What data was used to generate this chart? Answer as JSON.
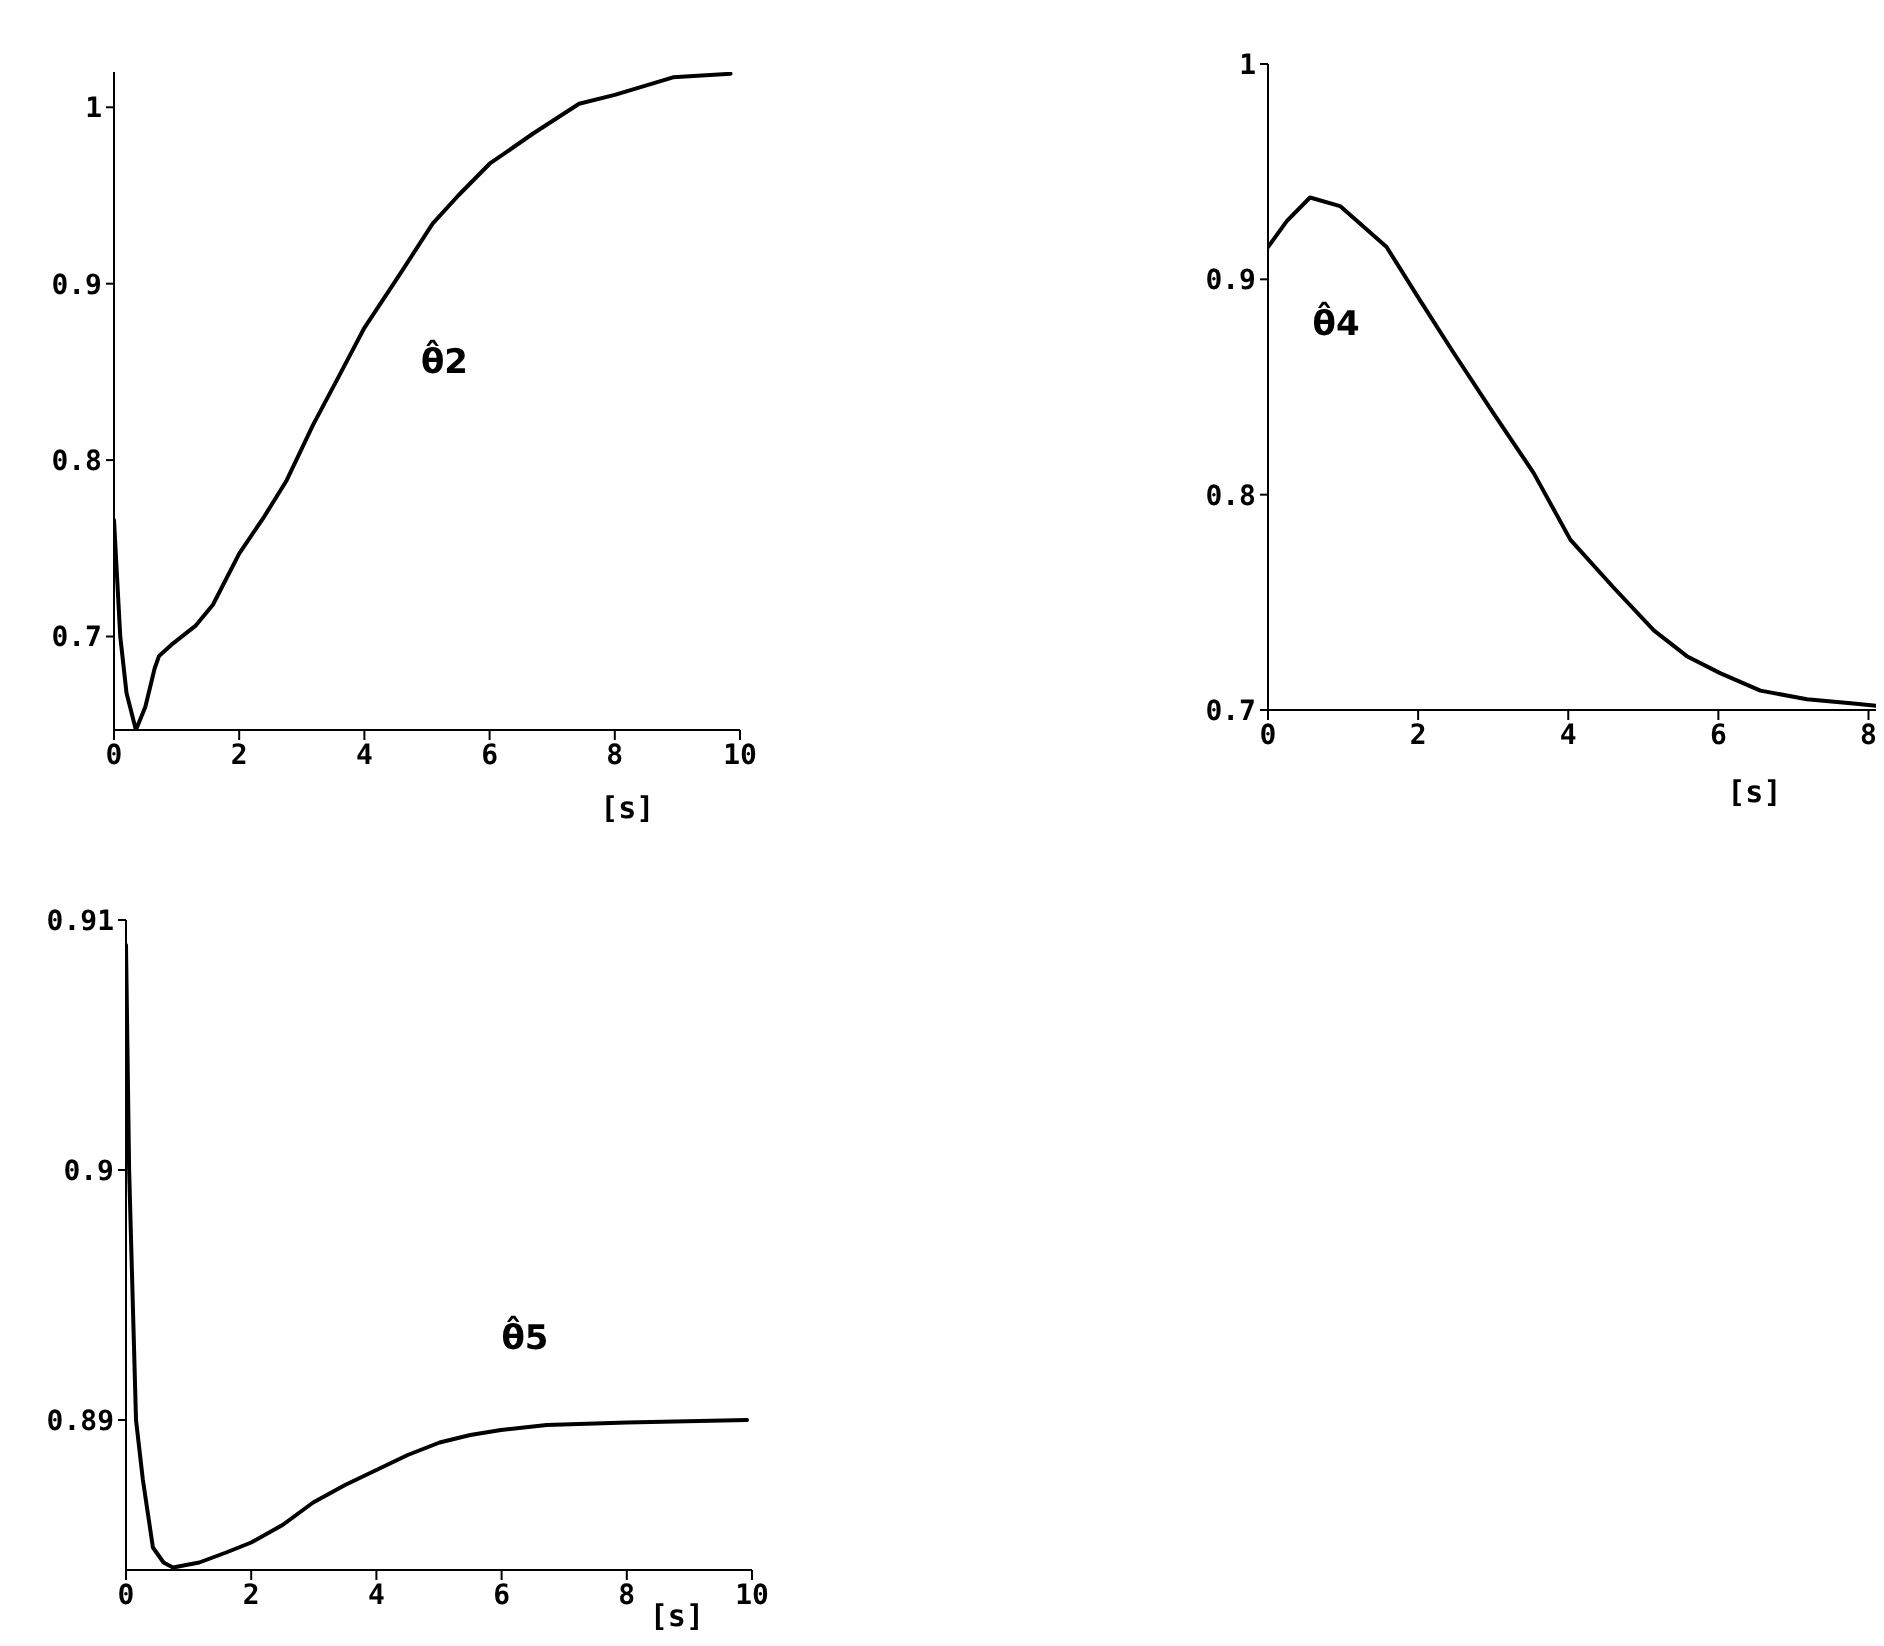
{
  "chart_data": [
    {
      "type": "line",
      "xlabel": "[s]",
      "x": [
        0,
        0.1,
        0.2,
        0.35,
        0.5,
        0.65,
        0.72,
        0.94,
        1.3,
        1.58,
        2.0,
        2.4,
        2.75,
        3.18,
        3.6,
        4.0,
        4.56,
        5.09,
        5.5,
        6.0,
        6.69,
        7.43,
        8.0,
        8.93,
        9.85
      ],
      "series": [
        {
          "name": "θ̂2",
          "color": "#000000",
          "values": [
            0.766,
            0.7,
            0.668,
            0.647,
            0.66,
            0.682,
            0.689,
            0.696,
            0.706,
            0.718,
            0.747,
            0.768,
            0.788,
            0.82,
            0.848,
            0.875,
            0.905,
            0.934,
            0.95,
            0.968,
            0.985,
            1.002,
            1.007,
            1.017,
            1.019
          ]
        }
      ],
      "xlim": [
        0,
        10
      ],
      "xticks": [
        0,
        2,
        4,
        6,
        8,
        10
      ],
      "ylim": [
        0.647,
        1.02
      ],
      "yticks": [
        0.7,
        0.8,
        0.9,
        1
      ]
    },
    {
      "type": "line",
      "xlabel": "[s]",
      "x": [
        0,
        0.25,
        0.56,
        0.96,
        1.58,
        2.03,
        2.47,
        3.0,
        3.54,
        4.03,
        4.6,
        5.14,
        5.58,
        6.03,
        6.56,
        7.18,
        7.8,
        8.1
      ],
      "series": [
        {
          "name": "θ̂4",
          "color": "#000000",
          "values": [
            0.915,
            0.927,
            0.938,
            0.934,
            0.915,
            0.89,
            0.866,
            0.838,
            0.81,
            0.779,
            0.757,
            0.737,
            0.725,
            0.717,
            0.709,
            0.705,
            0.703,
            0.702
          ]
        }
      ],
      "xlim": [
        0,
        8.1
      ],
      "xticks": [
        0,
        2,
        4,
        6,
        8
      ],
      "ylim": [
        0.7,
        1
      ],
      "yticks": [
        0.7,
        0.8,
        0.9,
        1
      ]
    },
    {
      "type": "line",
      "xlabel": "[s]",
      "x": [
        0,
        0.05,
        0.16,
        0.27,
        0.43,
        0.6,
        0.75,
        1.17,
        1.6,
        2.0,
        2.5,
        2.99,
        3.5,
        4.0,
        4.5,
        5.01,
        5.5,
        5.99,
        6.72,
        8.0,
        9.92
      ],
      "series": [
        {
          "name": "θ̂5",
          "color": "#000000",
          "values": [
            0.909,
            0.9,
            0.89,
            0.8876,
            0.8849,
            0.8843,
            0.8841,
            0.8843,
            0.8847,
            0.8851,
            0.8858,
            0.8867,
            0.8874,
            0.888,
            0.8886,
            0.8891,
            0.8894,
            0.8896,
            0.8898,
            0.8899,
            0.89
          ]
        }
      ],
      "xlim": [
        0,
        10
      ],
      "xticks": [
        0,
        2,
        4,
        6,
        8,
        10
      ],
      "ylim": [
        0.884,
        0.91
      ],
      "yticks": [
        0.89,
        0.9,
        0.91
      ]
    }
  ]
}
